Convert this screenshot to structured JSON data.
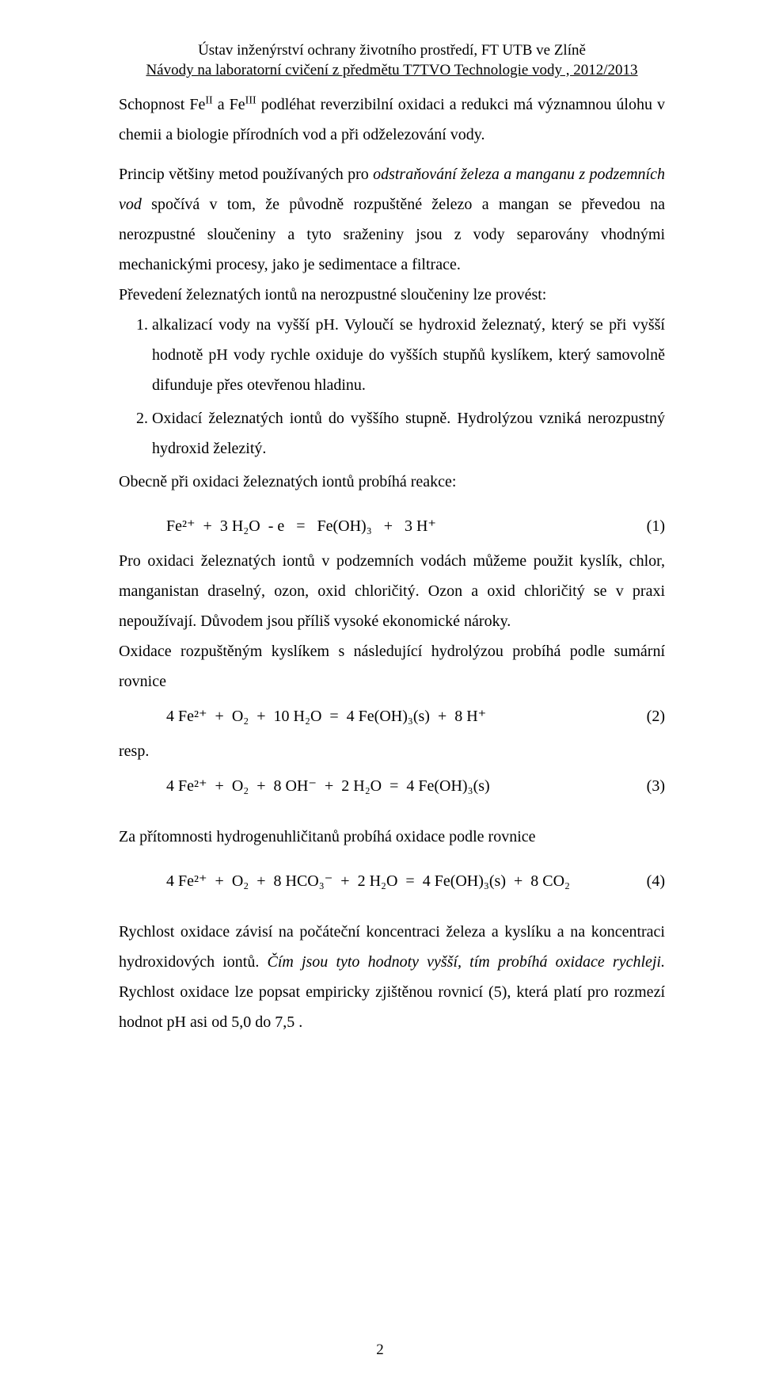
{
  "header": {
    "line1": "Ústav inženýrství ochrany životního prostředí, FT UTB ve Zlíně",
    "line2": "Návody na laboratorní cvičení z předmětu T7TVO Technologie vody , 2012/2013"
  },
  "p1a": "Schopnost Fe",
  "p1b": " a Fe",
  "p1c": " podléhat reverzibilní oxidaci a redukci má významnou úlohu v chemii a biologie přírodních vod a při odželezování vody.",
  "supII": "II",
  "supIII": "III",
  "p2a": "Princip většiny metod používaných pro ",
  "p2b": "odstraňování železa a manganu z podzemních vod",
  "p2c": " spočívá v tom, že původně rozpuštěné železo a mangan se převedou na nerozpustné sloučeniny a tyto sraženiny jsou z vody separovány vhodnými mechanickými procesy, jako je sedimentace a filtrace.",
  "p3": "Převedení železnatých iontů na nerozpustné sloučeniny lze provést:",
  "li1": "alkalizací vody na vyšší pH. Vyloučí se hydroxid železnatý, který se při vyšší hodnotě pH vody rychle oxiduje do vyšších stupňů kyslíkem, který samovolně difunduje přes otevřenou hladinu.",
  "li2": "Oxidací železnatých iontů do vyššího stupně. Hydrolýzou vzniká nerozpustný hydroxid železitý.",
  "p4": "Obecně při oxidaci železnatých iontů probíhá reakce:",
  "eq1": {
    "text": "Fe²⁺  +  3 H₂O  - e   =   Fe(OH)₃   +   3 H⁺",
    "num": "(1)"
  },
  "p5": "Pro oxidaci železnatých iontů v podzemních vodách můžeme použit kyslík, chlor, manganistan draselný, ozon, oxid chloričitý. Ozon a oxid chloričitý se v praxi nepoužívají. Důvodem jsou příliš vysoké ekonomické nároky.",
  "p6": "Oxidace rozpuštěným kyslíkem s následující hydrolýzou probíhá podle sumární rovnice",
  "eq2": {
    "text": "4 Fe²⁺  +  O₂  +  10 H₂O  =  4 Fe(OH)₃(s)  +  8 H⁺",
    "num": "(2)"
  },
  "resp": "resp.",
  "eq3": {
    "text": "4 Fe²⁺  +  O₂  +  8 OH⁻  +  2 H₂O  =  4 Fe(OH)₃(s)",
    "num": "(3)"
  },
  "p7": "Za přítomnosti hydrogenuhličitanů probíhá oxidace podle rovnice",
  "eq4": {
    "text": "4 Fe²⁺  +  O₂  +  8 HCO₃⁻  +  2 H₂O  =  4 Fe(OH)₃(s)  +  8 CO₂",
    "num": "(4)"
  },
  "p8a": "Rychlost oxidace závisí na počáteční koncentraci železa a kyslíku a na koncentraci hydroxidových iontů. ",
  "p8b": "Čím jsou tyto hodnoty vyšší, tím probíhá oxidace rychleji.",
  "p8c": " Rychlost oxidace lze popsat empiricky zjištěnou rovnicí (5), která platí pro rozmezí hodnot pH asi od 5,0 do 7,5 .",
  "pageNum": "2"
}
